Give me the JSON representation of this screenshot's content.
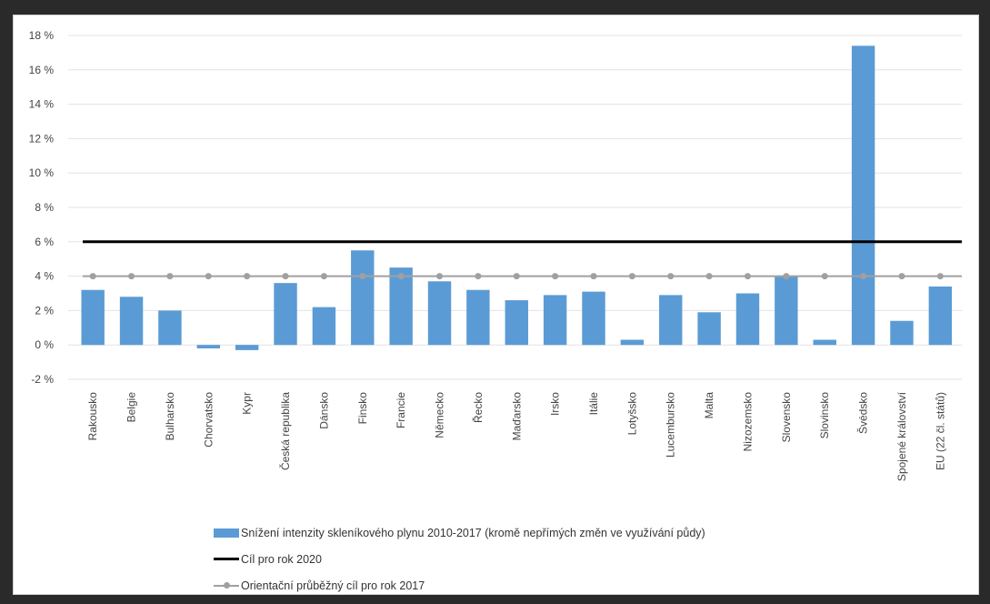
{
  "chart_data": {
    "type": "bar",
    "categories": [
      "Rakousko",
      "Belgie",
      "Bulharsko",
      "Chorvatsko",
      "Kypr",
      "Česká republika",
      "Dánsko",
      "Finsko",
      "Francie",
      "Německo",
      "Řecko",
      "Maďarsko",
      "Irsko",
      "Itálie",
      "Lotyšsko",
      "Lucembursko",
      "Malta",
      "Nizozemsko",
      "Slovensko",
      "Slovinsko",
      "Švédsko",
      "Spojené království",
      "EU (22 čl. států)"
    ],
    "series": [
      {
        "name": "Snížení intenzity skleníkového plynu 2010-2017 (kromě nepřímých změn ve využívání půdy)",
        "type": "bar",
        "color": "#5b9bd5",
        "values": [
          3.2,
          2.8,
          2.0,
          -0.2,
          -0.3,
          3.6,
          2.2,
          5.5,
          4.5,
          3.7,
          3.2,
          2.6,
          2.9,
          3.1,
          0.3,
          2.9,
          1.9,
          3.0,
          4.0,
          0.3,
          17.4,
          1.4,
          3.4
        ]
      },
      {
        "name": "Cíl pro rok 2020",
        "type": "line",
        "color": "#000000",
        "value": 6
      },
      {
        "name": "Orientační průběžný cíl pro rok 2017",
        "type": "line-marker",
        "color": "#a0a0a0",
        "value": 4
      }
    ],
    "yticks": [
      "18 %",
      "16 %",
      "14 %",
      "12 %",
      "10 %",
      "8 %",
      "6 %",
      "4 %",
      "2 %",
      "0 %",
      "-2 %"
    ],
    "ylim": [
      -2,
      18
    ],
    "grid": true,
    "legend_position": "bottom"
  },
  "legend": {
    "bar": "Snížení intenzity skleníkového plynu 2010-2017 (kromě nepřímých změn ve využívání půdy)",
    "target2020": "Cíl pro rok 2020",
    "target2017": "Orientační průběžný cíl pro rok 2017"
  }
}
